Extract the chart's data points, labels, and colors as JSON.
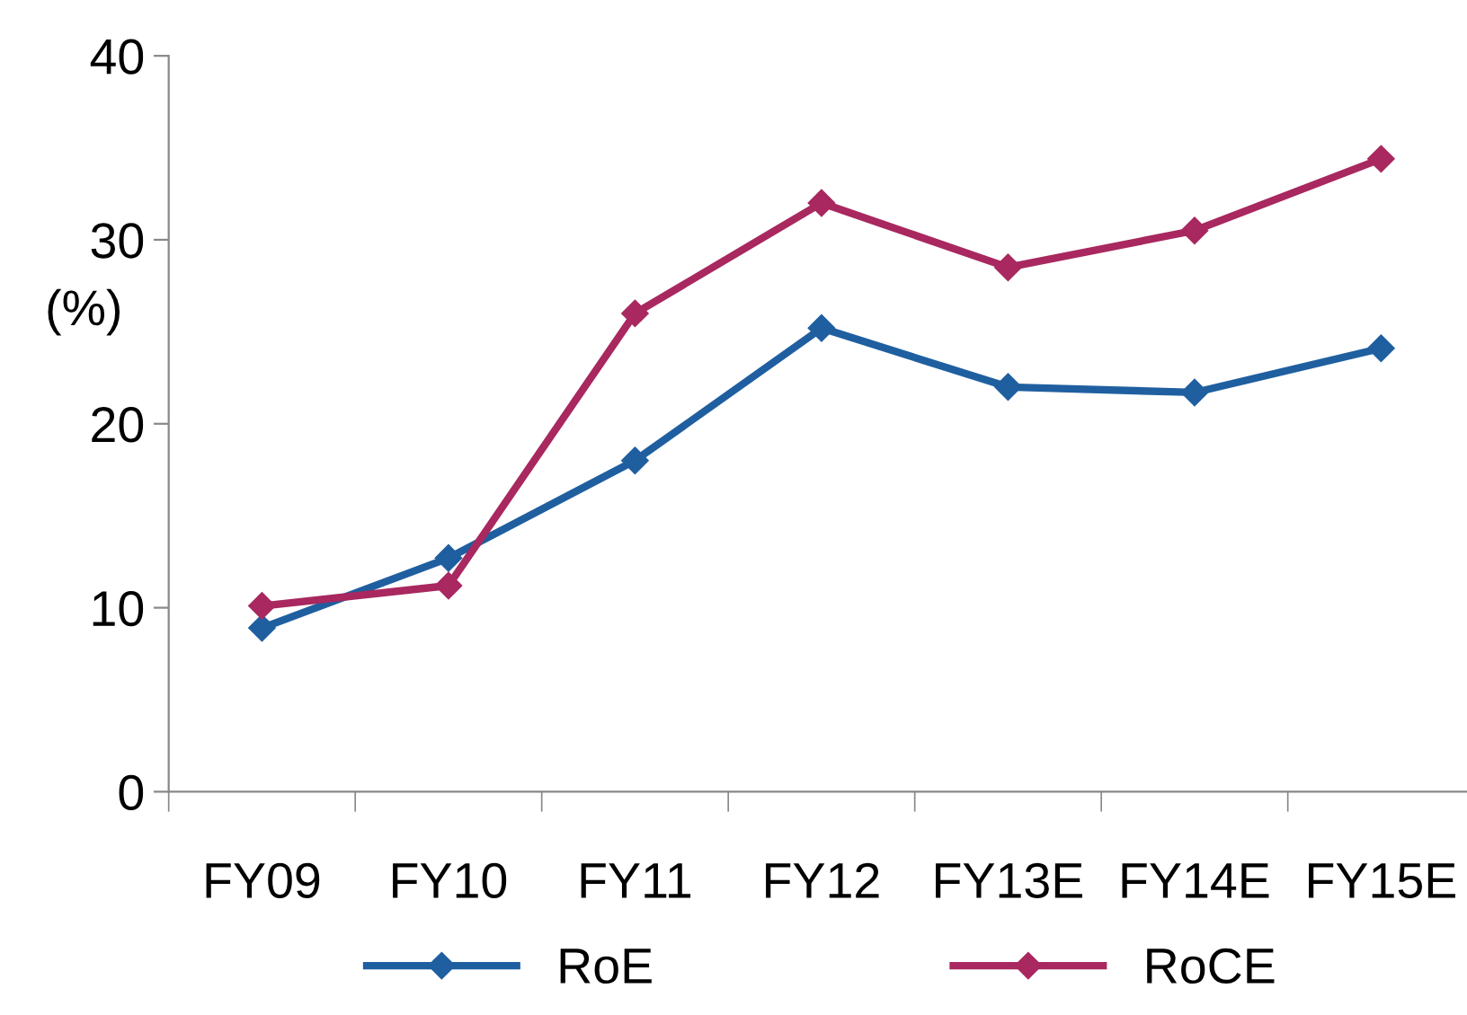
{
  "chart_data": {
    "type": "line",
    "ylabel": "(%)",
    "categories": [
      "FY09",
      "FY10",
      "FY11",
      "FY12",
      "FY13E",
      "FY14E",
      "FY15E"
    ],
    "series": [
      {
        "name": "RoE",
        "color": "#1f5fa0",
        "values": [
          8.9,
          12.7,
          18.0,
          25.2,
          22.0,
          21.7,
          24.1
        ]
      },
      {
        "name": "RoCE",
        "color": "#a8285f",
        "values": [
          10.1,
          11.2,
          26.0,
          32.0,
          28.5,
          30.5,
          34.4
        ]
      }
    ],
    "ylim": [
      0,
      40
    ],
    "yticks": [
      0,
      10,
      20,
      30,
      40
    ],
    "grid": false,
    "legend": "bottom",
    "marker": "diamond",
    "line_style": "solid"
  }
}
